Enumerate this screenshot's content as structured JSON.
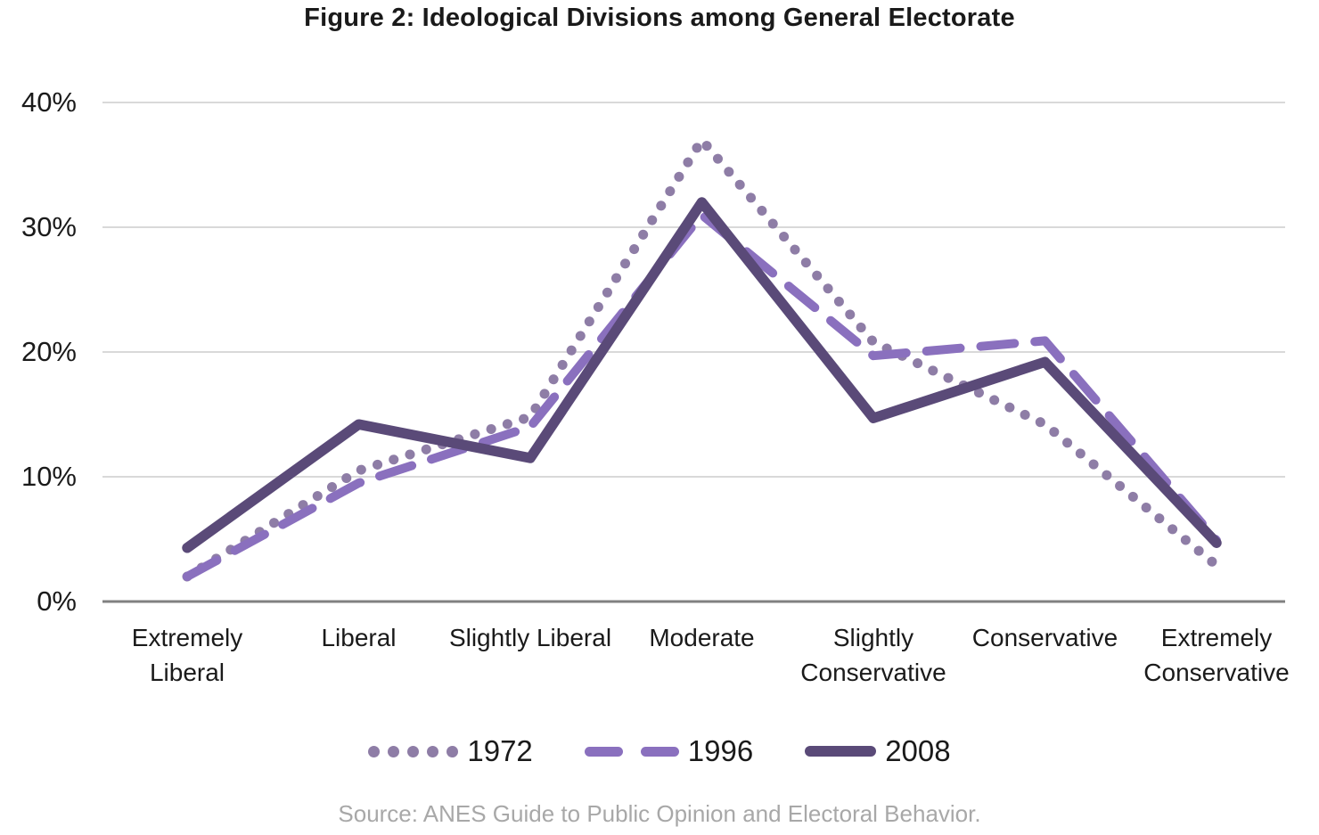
{
  "title": "Figure 2: Ideological Divisions among General Electorate",
  "source": "Source: ANES Guide to Public Opinion and Electoral Behavior.",
  "colors": {
    "gridline": "#d9d9d9",
    "axis_line": "#808080",
    "text": "#1a1a1a",
    "source_text": "#a8a8a8"
  },
  "chart_data": {
    "type": "line",
    "categories": [
      "Extremely Liberal",
      "Liberal",
      "Slightly Liberal",
      "Moderate",
      "Slightly Conservative",
      "Conservative",
      "Extremely Conservative"
    ],
    "yticks": [
      {
        "label": "0%",
        "value": 0
      },
      {
        "label": "10%",
        "value": 10
      },
      {
        "label": "20%",
        "value": 20
      },
      {
        "label": "30%",
        "value": 30
      },
      {
        "label": "40%",
        "value": 40
      }
    ],
    "ylim": [
      0,
      40
    ],
    "grid": true,
    "legend_position": "bottom",
    "xlabel": "",
    "ylabel": "",
    "series": [
      {
        "name": "1972",
        "style": "dotted",
        "color": "#8e7da6",
        "values": [
          2.0,
          10.5,
          14.8,
          37.0,
          20.8,
          14.2,
          2.9
        ]
      },
      {
        "name": "1996",
        "style": "dashed",
        "color": "#8a70be",
        "values": [
          2.0,
          9.5,
          14.0,
          31.0,
          19.7,
          20.9,
          4.9
        ]
      },
      {
        "name": "2008",
        "style": "solid",
        "color": "#5a4a78",
        "values": [
          4.3,
          14.2,
          11.5,
          32.0,
          14.7,
          19.2,
          4.7
        ]
      }
    ]
  }
}
